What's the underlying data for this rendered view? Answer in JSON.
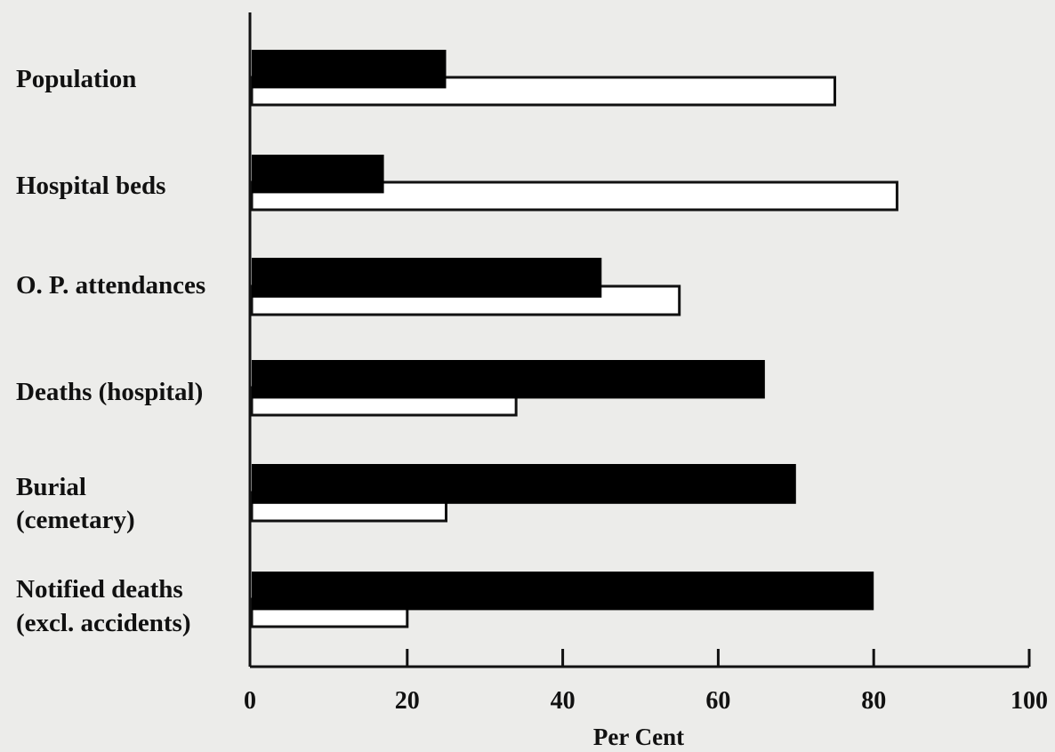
{
  "chart_data": {
    "type": "bar",
    "orientation": "horizontal",
    "categories": [
      [
        "Population"
      ],
      [
        "Hospital beds"
      ],
      [
        "O. P. attendances"
      ],
      [
        "Deaths (hospital)"
      ],
      [
        "Burial",
        "(cemetary)"
      ],
      [
        "Notified deaths",
        "(excl. accidents)"
      ]
    ],
    "series": [
      {
        "fill": "#000000",
        "values": [
          25,
          17,
          45,
          66,
          70,
          80
        ]
      },
      {
        "fill": "#ffffff",
        "values": [
          75,
          83,
          55,
          34,
          25,
          20
        ]
      }
    ],
    "xlabel": "Per Cent",
    "ticks": [
      "0",
      "20",
      "40",
      "60",
      "80",
      "100"
    ],
    "xlim": [
      0,
      100
    ],
    "grid": false,
    "legend": "none"
  }
}
